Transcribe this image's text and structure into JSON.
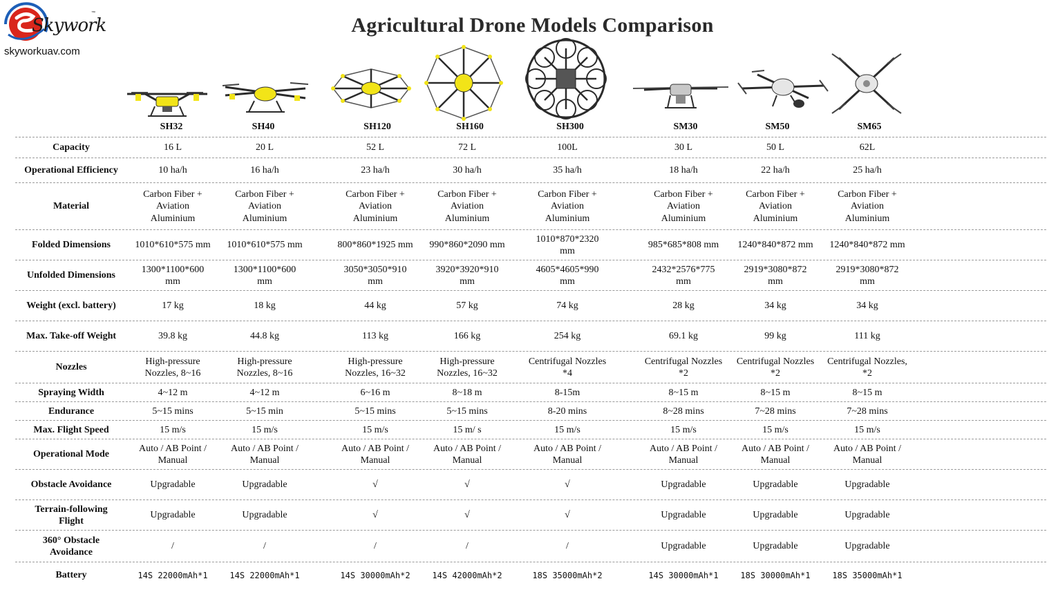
{
  "brand": {
    "script": "Skywork",
    "trademark": "™",
    "url": "skyworkuav.com"
  },
  "title": "Agricultural Drone Models Comparison",
  "colors": {
    "logo_red": "#d9261c",
    "logo_blue": "#1d5fb8",
    "drone_yellow": "#f2e418",
    "frame_dark": "#2b2b2b",
    "frame_grey": "#8a8a8a",
    "divider": "#9a9a9a"
  },
  "models": [
    "SH32",
    "SH40",
    "SH120",
    "SH160",
    "SH300",
    "SM30",
    "SM50",
    "SM65"
  ],
  "rows": [
    {
      "label": "Capacity",
      "values": [
        "16 L",
        "20 L",
        "52 L",
        "72 L",
        "100L",
        "30 L",
        "50 L",
        "62L"
      ]
    },
    {
      "label": "Operational Efficiency",
      "values": [
        "10 ha/h",
        "16 ha/h",
        "23 ha/h",
        "30 ha/h",
        "35 ha/h",
        "18 ha/h",
        "22 ha/h",
        "25 ha/h"
      ]
    },
    {
      "label": "Material",
      "values": [
        "Carbon Fiber +\nAviation\nAluminium",
        "Carbon Fiber +\nAviation\nAluminium",
        "Carbon Fiber +\nAviation\nAluminium",
        "Carbon Fiber +\nAviation\nAluminium",
        "Carbon Fiber +\nAviation\nAluminium",
        "Carbon Fiber +\nAviation\nAluminium",
        "Carbon Fiber +\nAviation\nAluminium",
        "Carbon Fiber +\nAviation\nAluminium"
      ]
    },
    {
      "label": "Folded Dimensions",
      "values": [
        "1010*610*575 mm",
        "1010*610*575 mm",
        "800*860*1925 mm",
        "990*860*2090 mm",
        "1010*870*2320\nmm",
        "985*685*808 mm",
        "1240*840*872 mm",
        "1240*840*872 mm"
      ]
    },
    {
      "label": "Unfolded Dimensions",
      "values": [
        "1300*1100*600\nmm",
        "1300*1100*600\nmm",
        "3050*3050*910\nmm",
        "3920*3920*910\nmm",
        "4605*4605*990\nmm",
        "2432*2576*775\nmm",
        "2919*3080*872\nmm",
        "2919*3080*872\nmm"
      ]
    },
    {
      "label": "Weight (excl. battery)",
      "values": [
        "17 kg",
        "18 kg",
        "44 kg",
        "57 kg",
        "74 kg",
        "28 kg",
        "34 kg",
        "34 kg"
      ]
    },
    {
      "label": "Max. Take-off Weight",
      "values": [
        "39.8 kg",
        "44.8 kg",
        "113 kg",
        "166 kg",
        "254 kg",
        "69.1 kg",
        "99 kg",
        "111 kg"
      ]
    },
    {
      "label": "Nozzles",
      "values": [
        "High-pressure\nNozzles, 8~16",
        "High-pressure\nNozzles, 8~16",
        "High-pressure\nNozzles, 16~32",
        "High-pressure\nNozzles, 16~32",
        "Centrifugal Nozzles\n*4",
        "Centrifugal Nozzles\n*2",
        "Centrifugal Nozzles\n*2",
        "Centrifugal Nozzles,\n*2"
      ]
    },
    {
      "label": "Spraying Width",
      "values": [
        "4~12 m",
        "4~12 m",
        "6~16 m",
        "8~18 m",
        "8-15m",
        "8~15 m",
        "8~15 m",
        "8~15 m"
      ]
    },
    {
      "label": "Endurance",
      "values": [
        "5~15 mins",
        "5~15 min",
        "5~15 mins",
        "5~15 mins",
        "8-20 mins",
        "8~28 mins",
        "7~28 mins",
        "7~28 mins"
      ]
    },
    {
      "label": "Max. Flight Speed",
      "values": [
        "15 m/s",
        "15 m/s",
        "15 m/s",
        "15 m/ s",
        "15 m/s",
        "15 m/s",
        "15 m/s",
        "15 m/s"
      ]
    },
    {
      "label": "Operational Mode",
      "values": [
        "Auto / AB Point /\nManual",
        "Auto / AB Point /\nManual",
        "Auto / AB Point /\nManual",
        "Auto / AB Point /\nManual",
        "Auto / AB Point /\nManual",
        "Auto / AB Point /\nManual",
        "Auto / AB Point /\nManual",
        "Auto / AB Point /\nManual"
      ]
    },
    {
      "label": "Obstacle Avoidance",
      "values": [
        "Upgradable",
        "Upgradable",
        "√",
        "√",
        "√",
        "Upgradable",
        "Upgradable",
        "Upgradable"
      ]
    },
    {
      "label": "Terrain-following\nFlight",
      "values": [
        "Upgradable",
        "Upgradable",
        "√",
        "√",
        "√",
        "Upgradable",
        "Upgradable",
        "Upgradable"
      ]
    },
    {
      "label": "360° Obstacle\nAvoidance",
      "values": [
        "/",
        "/",
        "/",
        "/",
        "/",
        "Upgradable",
        "Upgradable",
        "Upgradable"
      ]
    },
    {
      "label": "Battery",
      "values": [
        "14S 22000mAh*1",
        "14S 22000mAh*1",
        "14S 30000mAh*2",
        "14S 42000mAh*2",
        "18S 35000mAh*2",
        "14S 30000mAh*1",
        "18S 30000mAh*1",
        "18S 35000mAh*1"
      ]
    }
  ]
}
